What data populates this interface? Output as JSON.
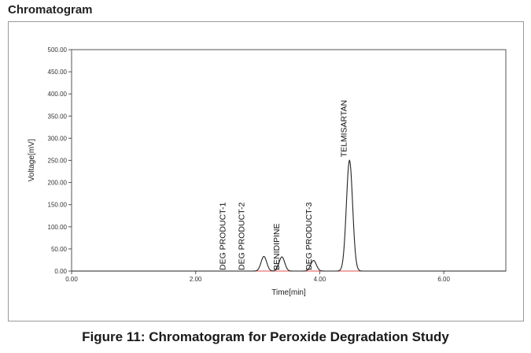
{
  "header": {
    "title": "Chromatogram"
  },
  "caption": "Figure 11: Chromatogram for Peroxide Degradation Study",
  "chart_data": {
    "type": "line",
    "title": "",
    "xlabel": "Time[min]",
    "ylabel": "Voltage[mV]",
    "xlim": [
      0,
      7.0
    ],
    "ylim": [
      0,
      500
    ],
    "x_ticks": [
      "0.00",
      "2.00",
      "4.00",
      "6.00"
    ],
    "x_tick_values": [
      0,
      2,
      4,
      6
    ],
    "y_ticks": [
      "0.00",
      "50.00",
      "100.00",
      "150.00",
      "200.00",
      "250.00",
      "300.00",
      "350.00",
      "400.00",
      "450.00",
      "500.00"
    ],
    "y_tick_values": [
      0,
      50,
      100,
      150,
      200,
      250,
      300,
      350,
      400,
      450,
      500
    ],
    "grid": false,
    "colors": {
      "signal": "#222222",
      "baseline": "#e05050"
    },
    "baseline": {
      "x_start": 2.4,
      "x_end": 6.6,
      "y": 0
    },
    "peaks": [
      {
        "label": "",
        "rt": 3.1,
        "height": 33,
        "width": 0.045
      },
      {
        "label": "BENIDIPINE",
        "rt": 3.39,
        "height": 32,
        "width": 0.045
      },
      {
        "label": "DEG PRODUCT-3",
        "rt": 3.9,
        "height": 24,
        "width": 0.045
      },
      {
        "label": "TELMISARTAN",
        "rt": 4.48,
        "height": 250,
        "width": 0.05
      }
    ],
    "annotations": [
      {
        "text": "DEG PRODUCT-1",
        "x": 2.43
      },
      {
        "text": "DEG PRODUCT-2",
        "x": 2.73
      },
      {
        "text": "BENIDIPINE",
        "x": 3.3
      },
      {
        "text": "DEG PRODUCT-3",
        "x": 3.82
      },
      {
        "text": "TELMISARTAN",
        "x": 4.38
      }
    ]
  }
}
